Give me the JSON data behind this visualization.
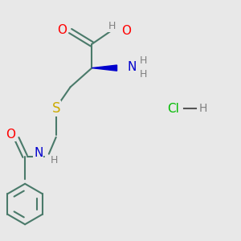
{
  "bg_color": "#e8e8e8",
  "atom_colors": {
    "O": "#ff0000",
    "N": "#0000cd",
    "S": "#ccaa00",
    "C": "#4a7a6a",
    "H": "#808080",
    "Cl": "#00bb00"
  },
  "bond_color": "#4a7a6a",
  "bond_width": 1.5,
  "font_size": 9,
  "title": ""
}
